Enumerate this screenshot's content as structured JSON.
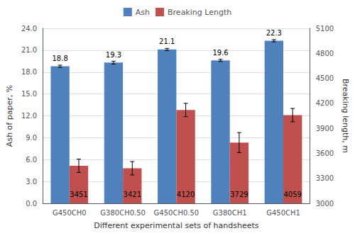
{
  "chart_data": {
    "type": "bar",
    "categories": [
      "G450CH0",
      "G380CH0.50",
      "G450CH0.50",
      "G380CH1",
      "G450CH1"
    ],
    "xlabel": "Different experimental sets of handsheets",
    "ylabel": "Ash of paper, %",
    "y2label": "Breaking length, m",
    "series": [
      {
        "name": "Ash",
        "color": "#4F81BD",
        "values": [
          18.8,
          19.3,
          21.1,
          19.6,
          22.3
        ],
        "errors": [
          0.15,
          0.2,
          0.15,
          0.15,
          0.15
        ]
      },
      {
        "name": "Breaking Length",
        "color": "#C0504D",
        "axis": "y2",
        "values": [
          3451,
          3421,
          4120,
          3729,
          4059
        ],
        "errors": [
          80,
          80,
          80,
          120,
          80
        ]
      }
    ],
    "ylim": [
      0,
      24.0
    ],
    "yticks": [
      {
        "value": 0,
        "label": "0.0"
      },
      {
        "value": 3,
        "label": "3.0"
      },
      {
        "value": 6,
        "label": "6.0"
      },
      {
        "value": 9,
        "label": "9.0"
      },
      {
        "value": 12,
        "label": "12.0"
      },
      {
        "value": 15,
        "label": "15.0"
      },
      {
        "value": 18,
        "label": "18.0"
      },
      {
        "value": 21,
        "label": "21.0"
      },
      {
        "value": 24,
        "label": "24.0"
      }
    ],
    "y2lim": [
      3000,
      5100
    ],
    "y2ticks": [
      3000,
      3300,
      3600,
      3900,
      4200,
      4500,
      4800,
      5100
    ],
    "grid": true,
    "legend": "top",
    "data_labels": true
  }
}
